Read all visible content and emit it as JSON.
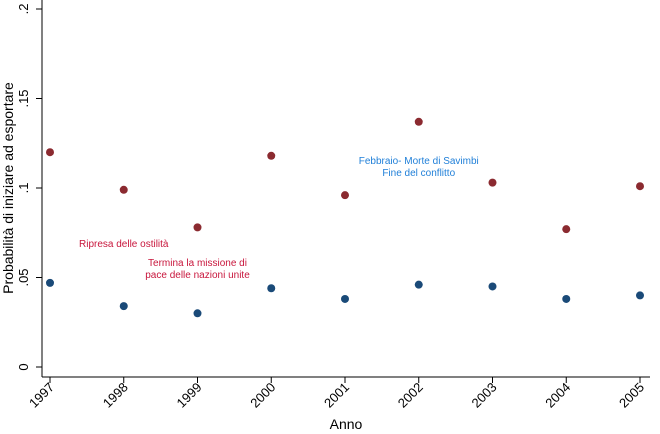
{
  "chart_data": {
    "type": "scatter",
    "xlabel": "Anno",
    "ylabel": "Probabilità di iniziare ad esportare",
    "x": [
      1997,
      1998,
      1999,
      2000,
      2001,
      2002,
      2003,
      2004,
      2005
    ],
    "x_ticks": [
      "1997",
      "1998",
      "1999",
      "2000",
      "2001",
      "2002",
      "2003",
      "2004",
      "2005"
    ],
    "y_ticks": [
      {
        "value": 0,
        "label": "0"
      },
      {
        "value": 0.05,
        "label": ".05"
      },
      {
        "value": 0.1,
        "label": ".1"
      },
      {
        "value": 0.15,
        "label": ".15"
      },
      {
        "value": 0.2,
        "label": ".2"
      }
    ],
    "ylim": [
      0,
      0.2
    ],
    "xlim": [
      1997,
      2005
    ],
    "grid": false,
    "series": [
      {
        "color": "#8b2a30",
        "values": [
          0.12,
          0.099,
          0.078,
          0.118,
          0.096,
          0.137,
          0.103,
          0.077,
          0.101
        ]
      },
      {
        "color": "#1a4a78",
        "values": [
          0.047,
          0.034,
          0.03,
          0.044,
          0.038,
          0.046,
          0.045,
          0.038,
          0.04
        ]
      }
    ],
    "annotations": [
      {
        "lines": [
          "Ripresa delle ostilità"
        ],
        "x": 1998,
        "y": 0.069,
        "color": "#c8163c"
      },
      {
        "lines": [
          "Termina la missione di",
          "pace delle nazioni unite"
        ],
        "x": 1999,
        "y": 0.055,
        "color": "#c8163c"
      },
      {
        "lines": [
          "Febbraio- Morte di Savimbi",
          "Fine del conflitto"
        ],
        "x": 2002,
        "y": 0.112,
        "color": "#1f7fd8"
      }
    ]
  }
}
